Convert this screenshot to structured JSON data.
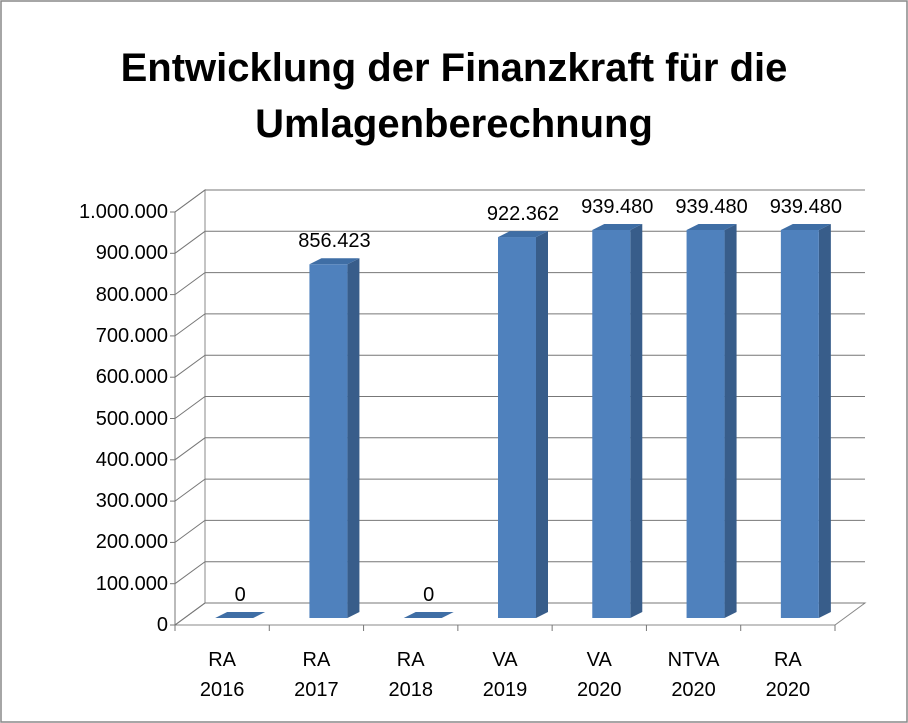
{
  "chart_data": {
    "type": "bar3d",
    "title": "Entwicklung der Finanzkraft für die Umlagenberechnung",
    "categories": [
      "RA 2016",
      "RA 2017",
      "RA 2018",
      "VA 2019",
      "VA 2020",
      "NTVA 2020",
      "RA 2020"
    ],
    "values": [
      0,
      856423,
      0,
      922362,
      939480,
      939480,
      939480
    ],
    "value_labels": [
      "0",
      "856.423",
      "0",
      "922.362",
      "939.480",
      "939.480",
      "939.480"
    ],
    "color": "#4f81bd",
    "ylim": [
      0,
      1000000
    ],
    "yticks": [
      0,
      {
        "value": 100000,
        "label": "100.000"
      },
      {
        "value": 200000,
        "label": "200.000"
      },
      {
        "value": 300000,
        "label": "300.000"
      },
      {
        "value": 400000,
        "label": "400.000"
      },
      {
        "value": 500000,
        "label": "500.000"
      },
      {
        "value": 600000,
        "label": "600.000"
      },
      {
        "value": 700000,
        "label": "700.000"
      },
      {
        "value": 800000,
        "label": "800.000"
      },
      {
        "value": 900000,
        "label": "900.000"
      },
      {
        "value": 1000000,
        "label": "1.000.000"
      }
    ],
    "grid": true
  }
}
